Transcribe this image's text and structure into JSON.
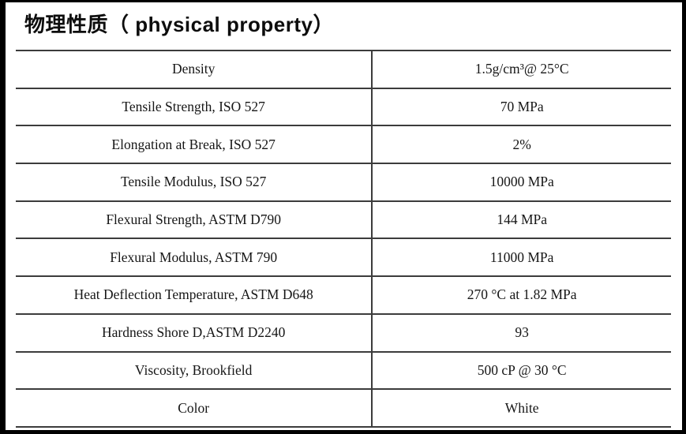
{
  "title": "物理性质（ physical property）",
  "table": {
    "rows": [
      {
        "property": "Density",
        "value": "1.5g/cm³@ 25°C"
      },
      {
        "property": "Tensile Strength, ISO 527",
        "value": "70 MPa"
      },
      {
        "property": "Elongation at Break, ISO 527",
        "value": "2%"
      },
      {
        "property": "Tensile Modulus, ISO 527",
        "value": "10000 MPa"
      },
      {
        "property": "Flexural Strength, ASTM D790",
        "value": "144 MPa"
      },
      {
        "property": "Flexural Modulus, ASTM 790",
        "value": "11000 MPa"
      },
      {
        "property": "Heat Deflection Temperature, ASTM D648",
        "value": "270 °C at 1.82 MPa"
      },
      {
        "property": "Hardness Shore D,ASTM D2240",
        "value": "93"
      },
      {
        "property": "Viscosity, Brookfield",
        "value": "500 cP @ 30 °C"
      },
      {
        "property": "Color",
        "value": "White"
      }
    ]
  },
  "colors": {
    "frame": "#000000",
    "grid_line": "#3c3c3c",
    "text": "#111111",
    "background": "#ffffff"
  }
}
